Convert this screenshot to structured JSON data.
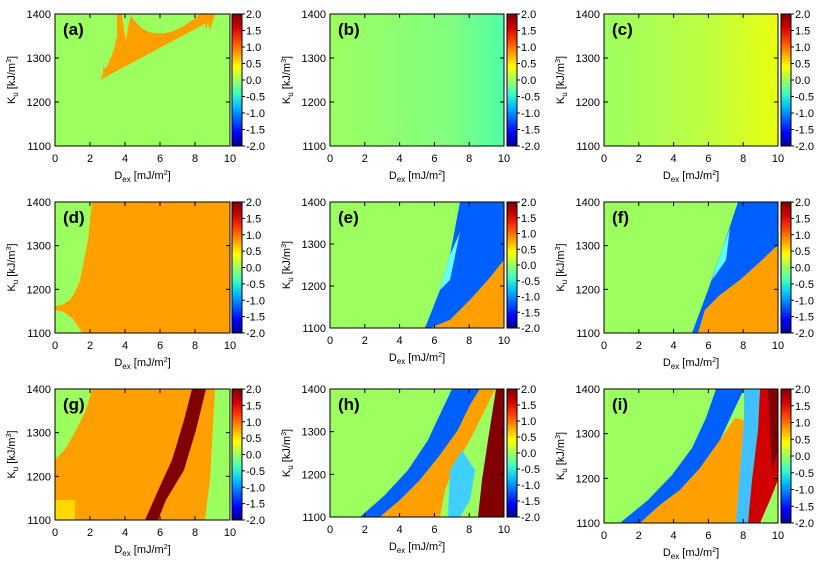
{
  "chart_data": {
    "type": "heatmap",
    "xlabel_main": "D",
    "xlabel_sub": "ex",
    "xlabel_unit": " [mJ/m",
    "xlabel_exp": "2",
    "xlabel_close": "]",
    "ylabel_main": "K",
    "ylabel_sub": "u",
    "ylabel_unit": " [kJ/m",
    "ylabel_exp": "3",
    "ylabel_close": "]",
    "xlim": [
      0,
      10
    ],
    "ylim": [
      1100,
      1400
    ],
    "x_ticks": [
      "0",
      "2",
      "4",
      "6",
      "8",
      "10"
    ],
    "y_ticks": [
      "1100",
      "1200",
      "1300",
      "1400"
    ],
    "colorbar_range": [
      -2.0,
      2.0
    ],
    "colorbar_ticks": [
      "2.0",
      "1.5",
      "1.0",
      "0.5",
      "0.0",
      "-0.5",
      "-1.0",
      "-1.5",
      "-2.0"
    ],
    "colormap": [
      "#00008f",
      "#0000ff",
      "#0060ff",
      "#00bfff",
      "#40ffbf",
      "#9cff60",
      "#ffff00",
      "#ffa000",
      "#ff4000",
      "#d00000",
      "#800000"
    ],
    "panels": [
      {
        "label": "(a)",
        "description": "mostly 0.0 (green) with orange (1.0) region along top-left arc between Dex 2.5 and 9"
      },
      {
        "label": "(b)",
        "description": "uniform ~0.0 (green), slightly cyan toward Dex 10"
      },
      {
        "label": "(c)",
        "description": "uniform ~0.0, shading to yellow (~0.3) toward Dex 10"
      },
      {
        "label": "(d)",
        "description": "orange (1.0) for Dex > ~2, green (0.0) for small Dex"
      },
      {
        "label": "(e)",
        "description": "green left, blue (-1.0) band in upper right, orange (1.0) bottom right"
      },
      {
        "label": "(f)",
        "description": "green left, blue/cyan band upper right, orange bottom right"
      },
      {
        "label": "(g)",
        "description": "orange (1.0) main region, dark red (2.0) diagonal stripe from Dex 5 to 8, green edges"
      },
      {
        "label": "(h)",
        "description": "green upper-left, blue diagonal band, orange strip, cyan/blue and dark red (2.0) regions near Dex 7-10"
      },
      {
        "label": "(i)",
        "description": "green upper-left, blue band, orange lower region, cyan/red mixed region near Dex 7-9, dark red at right"
      }
    ]
  }
}
